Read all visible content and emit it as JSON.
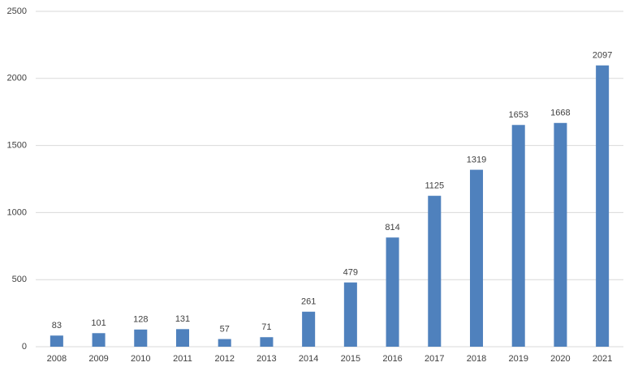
{
  "chart_data": {
    "type": "bar",
    "categories": [
      "2008",
      "2009",
      "2010",
      "2011",
      "2012",
      "2013",
      "2014",
      "2015",
      "2016",
      "2017",
      "2018",
      "2019",
      "2020",
      "2021"
    ],
    "values": [
      83,
      101,
      128,
      131,
      57,
      71,
      261,
      479,
      814,
      1125,
      1319,
      1653,
      1668,
      2097
    ],
    "color": "#4f81bd",
    "ylim": [
      0,
      2500
    ],
    "yticks": [
      0,
      500,
      1000,
      1500,
      2000,
      2500
    ],
    "grid": true
  }
}
